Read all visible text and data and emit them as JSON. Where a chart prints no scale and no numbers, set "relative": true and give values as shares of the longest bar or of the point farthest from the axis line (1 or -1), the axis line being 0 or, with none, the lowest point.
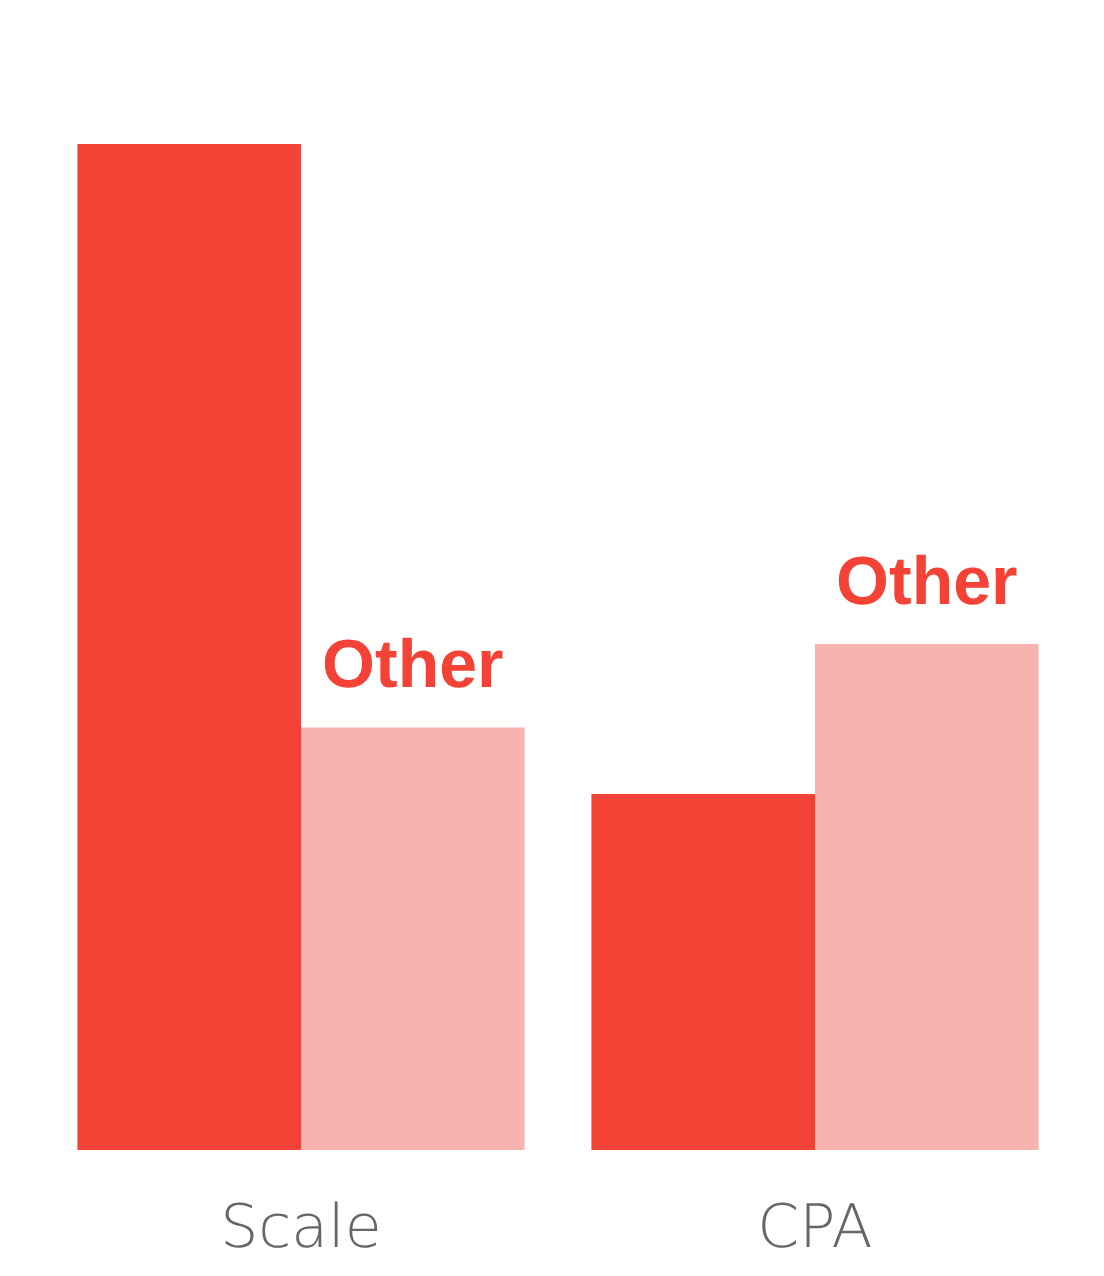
{
  "chart_data": {
    "type": "bar",
    "relative": true,
    "categories": [
      "Scale",
      "CPA"
    ],
    "series": [
      {
        "color": "#f44336",
        "values": [
          1,
          0.354
        ]
      },
      {
        "name": "Other",
        "color": "#f8b3ae",
        "values": [
          0.42,
          0.503
        ]
      }
    ],
    "legend": false
  }
}
